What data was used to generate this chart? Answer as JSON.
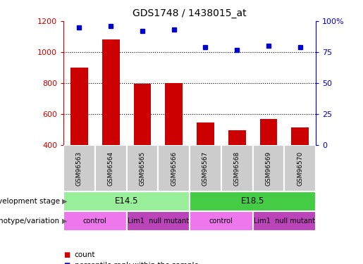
{
  "title": "GDS1748 / 1438015_at",
  "samples": [
    "GSM96563",
    "GSM96564",
    "GSM96565",
    "GSM96566",
    "GSM96567",
    "GSM96568",
    "GSM96569",
    "GSM96570"
  ],
  "counts": [
    900,
    1080,
    795,
    800,
    545,
    495,
    570,
    515
  ],
  "percentiles": [
    95,
    96,
    92,
    93,
    79,
    77,
    80,
    79
  ],
  "ylim_left": [
    400,
    1200
  ],
  "ylim_right": [
    0,
    100
  ],
  "yticks_left": [
    400,
    600,
    800,
    1000,
    1200
  ],
  "yticks_right": [
    0,
    25,
    50,
    75,
    100
  ],
  "bar_color": "#cc0000",
  "dot_color": "#0000cc",
  "development_stage_label": "development stage",
  "genotype_label": "genotype/variation",
  "dev_stages": [
    {
      "label": "E14.5",
      "start": 0,
      "end": 3,
      "color": "#99ee99"
    },
    {
      "label": "E18.5",
      "start": 4,
      "end": 7,
      "color": "#44cc44"
    }
  ],
  "genotypes": [
    {
      "label": "control",
      "start": 0,
      "end": 1,
      "color": "#ee77ee"
    },
    {
      "label": "Lim1  null mutant",
      "start": 2,
      "end": 3,
      "color": "#bb44bb"
    },
    {
      "label": "control",
      "start": 4,
      "end": 5,
      "color": "#ee77ee"
    },
    {
      "label": "Lim1  null mutant",
      "start": 6,
      "end": 7,
      "color": "#bb44bb"
    }
  ],
  "legend_count_color": "#cc0000",
  "legend_pct_color": "#0000cc",
  "sample_box_color": "#cccccc",
  "left_axis_color": "#cc0000",
  "right_axis_color": "#0000cc"
}
